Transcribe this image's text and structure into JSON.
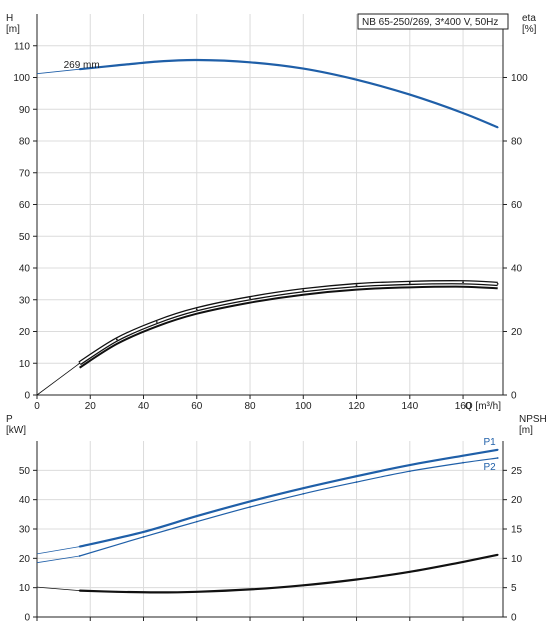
{
  "title_box": "NB 65-250/269, 3*400 V, 50Hz",
  "colors": {
    "blue": "#1f5fa8",
    "black": "#111111",
    "grid": "#dcdcdc"
  },
  "chart_data": [
    {
      "id": "head",
      "type": "line",
      "xlabel": "Q [m³/h]",
      "x_ticks": [
        0,
        20,
        40,
        60,
        80,
        100,
        120,
        140,
        160
      ],
      "xlim": [
        0,
        175
      ],
      "ylabel_left": "H\n[m]",
      "ylim_left": [
        0,
        120
      ],
      "y_ticks_left": [
        0,
        10,
        20,
        30,
        40,
        50,
        60,
        70,
        80,
        90,
        100,
        110
      ],
      "ylabel_right": "eta\n[%]",
      "ylim_right": [
        0,
        120
      ],
      "y_ticks_right": [
        0,
        20,
        40,
        60,
        80,
        100
      ],
      "grid": true,
      "series": [
        {
          "name": "269 mm",
          "axis": "left",
          "color": "blue",
          "style": "thick",
          "x": [
            16,
            30,
            45,
            60,
            80,
            100,
            120,
            140,
            160,
            173
          ],
          "y": [
            102.6,
            103.8,
            105,
            105.5,
            104.8,
            102.8,
            99.3,
            94.6,
            88.8,
            84.3
          ],
          "x_ext": [
            0,
            16
          ],
          "y_ext": [
            101.2,
            102.6
          ]
        },
        {
          "name": "",
          "axis": "right",
          "color": "black",
          "style": "double",
          "x": [
            16,
            30,
            45,
            60,
            80,
            100,
            120,
            140,
            160,
            173
          ],
          "y": [
            10,
            17.5,
            23,
            27,
            30.5,
            33,
            34.6,
            35.3,
            35.5,
            35
          ],
          "x_ext": [
            0,
            16
          ],
          "y_ext": [
            0,
            10
          ]
        }
      ]
    },
    {
      "id": "power_npsh",
      "type": "line",
      "ylabel_left": "P\n[kW]",
      "ylim_left": [
        0,
        60
      ],
      "y_ticks_left": [
        0,
        10,
        20,
        30,
        40,
        50
      ],
      "ylabel_right": "NPSH\n[m]",
      "ylim_right": [
        0,
        30
      ],
      "y_ticks_right": [
        0,
        5,
        10,
        15,
        20,
        25
      ],
      "grid": true,
      "series": [
        {
          "name": "P1",
          "axis": "left",
          "color": "blue",
          "style": "thick",
          "x": [
            16,
            40,
            60,
            80,
            100,
            120,
            140,
            160,
            173
          ],
          "y": [
            24,
            29,
            34.4,
            39.4,
            43.9,
            48,
            51.8,
            55,
            57
          ],
          "x_ext": [
            0,
            16
          ],
          "y_ext": [
            21.5,
            24
          ]
        },
        {
          "name": "P2",
          "axis": "left",
          "color": "blue",
          "style": "thin",
          "x": [
            16,
            40,
            60,
            80,
            100,
            120,
            140,
            160,
            173
          ],
          "y": [
            20.8,
            27.3,
            32.5,
            37.5,
            42,
            46,
            49.7,
            52.6,
            54.2
          ],
          "x_ext": [
            0,
            16
          ],
          "y_ext": [
            18.5,
            20.8
          ]
        },
        {
          "name": "",
          "axis": "right",
          "color": "black",
          "style": "thick",
          "x": [
            16,
            30,
            45,
            60,
            80,
            100,
            120,
            140,
            160,
            173
          ],
          "y": [
            4.5,
            4.3,
            4.2,
            4.3,
            4.7,
            5.4,
            6.4,
            7.7,
            9.4,
            10.6
          ],
          "x_ext": [
            0,
            16
          ],
          "y_ext": [
            5.1,
            4.5
          ]
        }
      ]
    }
  ]
}
